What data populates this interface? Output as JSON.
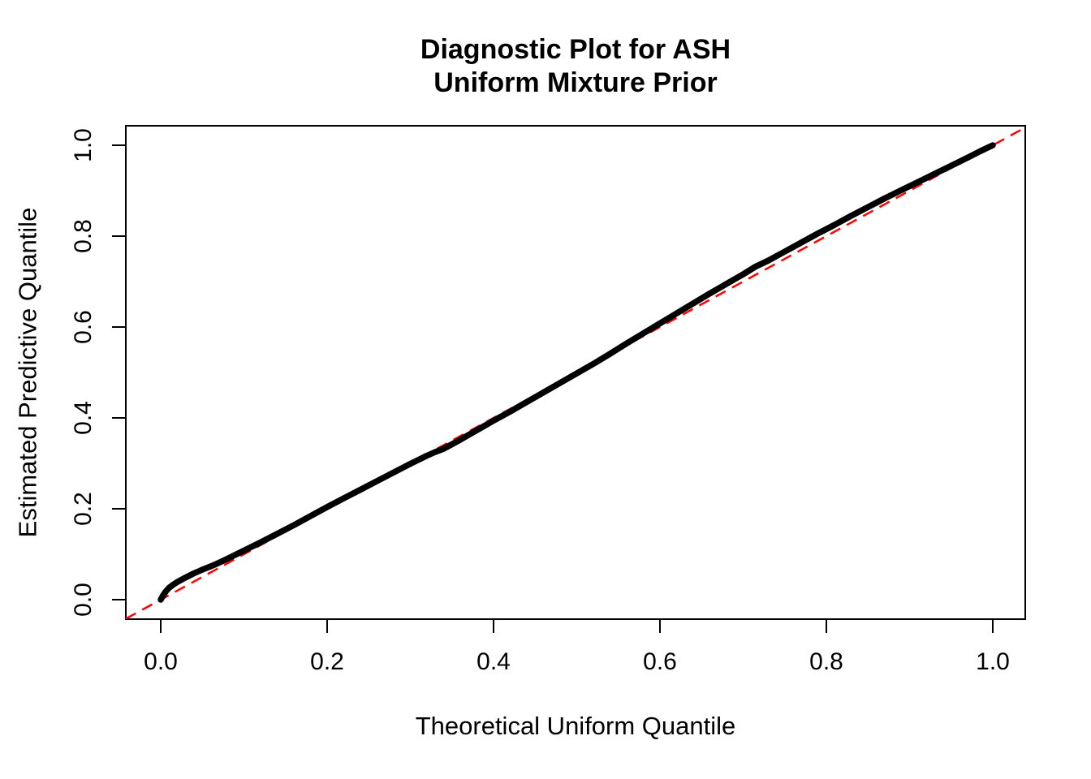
{
  "chart_data": {
    "type": "scatter",
    "title_line1": "Diagnostic Plot for ASH",
    "title_line2": "Uniform Mixture Prior",
    "xlabel": "Theoretical Uniform Quantile",
    "ylabel": "Estimated Predictive Quantile",
    "x_tick_labels": [
      "0.0",
      "0.2",
      "0.4",
      "0.6",
      "0.8",
      "1.0"
    ],
    "y_tick_labels": [
      "0.0",
      "0.2",
      "0.4",
      "0.6",
      "0.8",
      "1.0"
    ],
    "x_tick_values": [
      0.0,
      0.2,
      0.4,
      0.6,
      0.8,
      1.0
    ],
    "y_tick_values": [
      0.0,
      0.2,
      0.4,
      0.6,
      0.8,
      1.0
    ],
    "xlim": [
      -0.042,
      1.039
    ],
    "ylim": [
      -0.042,
      1.039
    ],
    "grid": "off",
    "legend": "none",
    "colors": {
      "background": "#FFFFFF",
      "box": "#000000",
      "text": "#000000",
      "points": "#000000",
      "reference_line": "#FF0000"
    },
    "reference_line": {
      "name": "identity-diagonal",
      "equation": "y = x",
      "intercept": 0,
      "slope": 1,
      "style": "dashed"
    },
    "series": [
      {
        "name": "estimated-predictive-quantiles",
        "description": "QQ curve of estimated predictive quantile vs theoretical uniform quantile",
        "points": [
          [
            0.0,
            0.0
          ],
          [
            0.003,
            0.01
          ],
          [
            0.006,
            0.018
          ],
          [
            0.01,
            0.026
          ],
          [
            0.015,
            0.033
          ],
          [
            0.02,
            0.039
          ],
          [
            0.03,
            0.049
          ],
          [
            0.04,
            0.058
          ],
          [
            0.05,
            0.066
          ],
          [
            0.065,
            0.077
          ],
          [
            0.08,
            0.09
          ],
          [
            0.1,
            0.108
          ],
          [
            0.12,
            0.126
          ],
          [
            0.14,
            0.145
          ],
          [
            0.16,
            0.164
          ],
          [
            0.18,
            0.184
          ],
          [
            0.2,
            0.204
          ],
          [
            0.22,
            0.223
          ],
          [
            0.24,
            0.242
          ],
          [
            0.26,
            0.261
          ],
          [
            0.28,
            0.28
          ],
          [
            0.3,
            0.299
          ],
          [
            0.32,
            0.317
          ],
          [
            0.33,
            0.325
          ],
          [
            0.34,
            0.332
          ],
          [
            0.36,
            0.352
          ],
          [
            0.38,
            0.373
          ],
          [
            0.4,
            0.394
          ],
          [
            0.42,
            0.414
          ],
          [
            0.44,
            0.435
          ],
          [
            0.46,
            0.456
          ],
          [
            0.48,
            0.477
          ],
          [
            0.5,
            0.498
          ],
          [
            0.52,
            0.519
          ],
          [
            0.54,
            0.541
          ],
          [
            0.56,
            0.564
          ],
          [
            0.58,
            0.586
          ],
          [
            0.6,
            0.608
          ],
          [
            0.62,
            0.63
          ],
          [
            0.64,
            0.652
          ],
          [
            0.66,
            0.674
          ],
          [
            0.68,
            0.695
          ],
          [
            0.7,
            0.716
          ],
          [
            0.715,
            0.733
          ],
          [
            0.73,
            0.746
          ],
          [
            0.75,
            0.766
          ],
          [
            0.77,
            0.786
          ],
          [
            0.79,
            0.806
          ],
          [
            0.81,
            0.825
          ],
          [
            0.83,
            0.845
          ],
          [
            0.85,
            0.864
          ],
          [
            0.87,
            0.883
          ],
          [
            0.89,
            0.901
          ],
          [
            0.91,
            0.919
          ],
          [
            0.93,
            0.937
          ],
          [
            0.95,
            0.955
          ],
          [
            0.97,
            0.973
          ],
          [
            0.985,
            0.987
          ],
          [
            1.0,
            1.0
          ]
        ]
      }
    ]
  }
}
